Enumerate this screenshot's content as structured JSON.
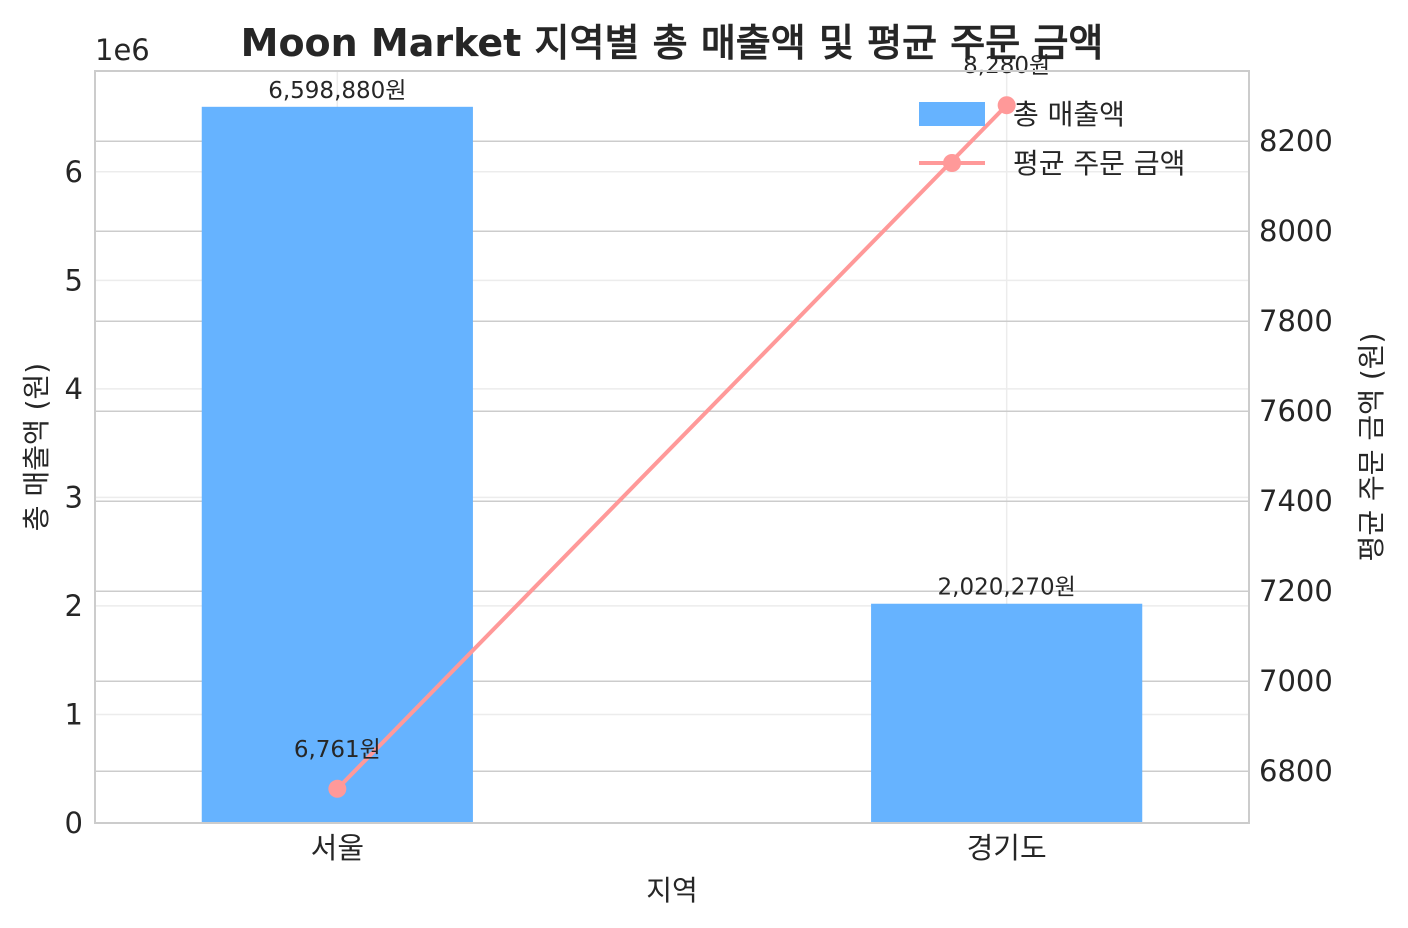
{
  "chart_data": {
    "type": "bar",
    "title": "Moon Market 지역별 총 매출액 및 평균 주문 금액",
    "xlabel": "지역",
    "ylabel": "총 매출액 (원)",
    "y2label": "평균 주문 금액 (원)",
    "y_offset_text": "1e6",
    "categories": [
      "서울",
      "경기도"
    ],
    "ylim": [
      0,
      6928824
    ],
    "y2lim": [
      6685,
      8356
    ],
    "y_ticks": [
      0,
      1,
      2,
      3,
      4,
      5,
      6
    ],
    "y2_ticks": [
      6800,
      7000,
      7200,
      7400,
      7600,
      7800,
      8000,
      8200
    ],
    "grid": true,
    "legend_position": "upper right",
    "series": [
      {
        "name": "총 매출액",
        "kind": "bar",
        "axis": "left",
        "color": "#66b3ff",
        "values": [
          6598880,
          2020270
        ],
        "labels": [
          "6,598,880원",
          "2,020,270원"
        ]
      },
      {
        "name": "평균 주문 금액",
        "kind": "line",
        "axis": "right",
        "color": "#ff9999",
        "marker": "circle",
        "values": [
          6761,
          8280
        ],
        "labels": [
          "6,761원",
          "8,280원"
        ]
      }
    ]
  }
}
